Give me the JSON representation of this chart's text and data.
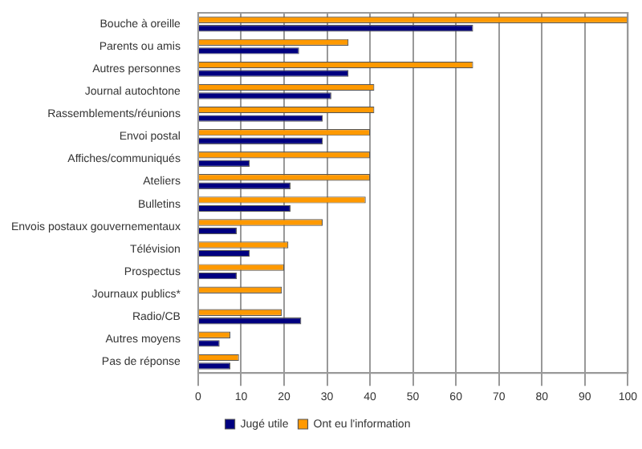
{
  "chart_data": {
    "type": "bar",
    "orientation": "horizontal",
    "categories": [
      "Bouche à oreille",
      "Parents ou amis",
      "Autres personnes",
      "Journal autochtone",
      "Rassemblements/réunions",
      "Envoi postal",
      "Affiches/communiqués",
      "Ateliers",
      "Bulletins",
      "Envois postaux gouvernementaux",
      "Télévision",
      "Prospectus",
      "Journaux publics*",
      "Radio/CB",
      "Autres moyens",
      "Pas de réponse"
    ],
    "series": [
      {
        "name": "Ont eu l'information",
        "color": "#ff9900",
        "values": [
          100,
          35,
          64,
          41,
          41,
          40,
          40,
          40,
          39,
          29,
          21,
          20,
          19.5,
          19.5,
          7.5,
          9.5
        ]
      },
      {
        "name": "Jugé utile",
        "color": "#000080",
        "values": [
          64,
          23.5,
          35,
          31,
          29,
          29,
          12,
          21.5,
          21.5,
          9,
          12,
          9,
          null,
          24,
          5,
          7.5
        ]
      }
    ],
    "xlim": [
      0,
      100
    ],
    "xticks": [
      0,
      10,
      20,
      30,
      40,
      50,
      60,
      70,
      80,
      90,
      100
    ],
    "grid": "x",
    "legend": "bottom"
  }
}
